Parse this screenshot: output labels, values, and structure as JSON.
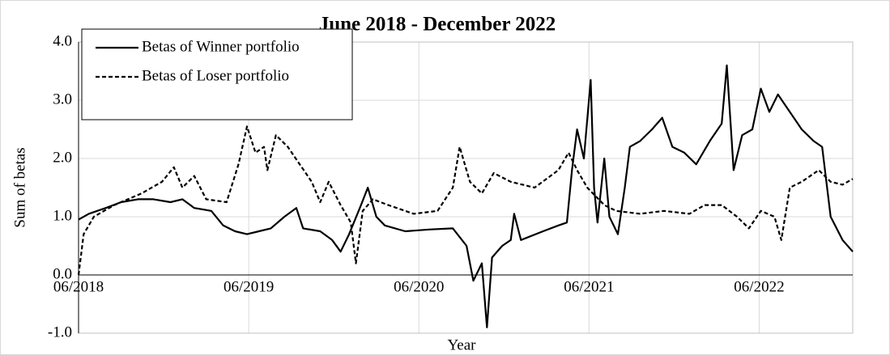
{
  "chart_data": {
    "type": "line",
    "title": "June 2018 - December 2022",
    "x_label": "Year",
    "y_label": "Sum of betas",
    "xlim": [
      2018.42,
      2022.97
    ],
    "xticks": [
      {
        "value": 2018.42,
        "label": "06/2018"
      },
      {
        "value": 2019.42,
        "label": "06/2019"
      },
      {
        "value": 2020.42,
        "label": "06/2020"
      },
      {
        "value": 2021.42,
        "label": "06/2021"
      },
      {
        "value": 2022.42,
        "label": "06/2022"
      }
    ],
    "ylim": [
      -1,
      4
    ],
    "yticks": [
      {
        "value": -1,
        "label": "-1.0"
      },
      {
        "value": 0,
        "label": "0.0"
      },
      {
        "value": 1,
        "label": "1.0"
      },
      {
        "value": 2,
        "label": "2.0"
      },
      {
        "value": 3,
        "label": "3.0"
      },
      {
        "value": 4,
        "label": "4.0"
      }
    ],
    "grid": true,
    "legend": "upper left",
    "series": [
      {
        "name": "Betas of Winner portfolio",
        "color": "#000000",
        "dashed": false,
        "x": [
          2018.42,
          2018.48,
          2018.58,
          2018.67,
          2018.77,
          2018.86,
          2018.96,
          2019.03,
          2019.1,
          2019.2,
          2019.27,
          2019.34,
          2019.41,
          2019.48,
          2019.55,
          2019.63,
          2019.7,
          2019.74,
          2019.84,
          2019.91,
          2019.96,
          2020.01,
          2020.08,
          2020.12,
          2020.17,
          2020.22,
          2020.34,
          2020.48,
          2020.62,
          2020.7,
          2020.74,
          2020.79,
          2020.82,
          2020.85,
          2020.91,
          2020.96,
          2020.98,
          2021.02,
          2021.15,
          2021.24,
          2021.29,
          2021.32,
          2021.35,
          2021.39,
          2021.43,
          2021.45,
          2021.47,
          2021.51,
          2021.54,
          2021.59,
          2021.63,
          2021.66,
          2021.72,
          2021.79,
          2021.85,
          2021.91,
          2021.98,
          2022.05,
          2022.13,
          2022.2,
          2022.23,
          2022.27,
          2022.32,
          2022.38,
          2022.43,
          2022.48,
          2022.53,
          2022.6,
          2022.67,
          2022.74,
          2022.79,
          2022.84,
          2022.91,
          2022.97
        ],
        "values": [
          0.95,
          1.05,
          1.15,
          1.25,
          1.3,
          1.3,
          1.25,
          1.3,
          1.15,
          1.1,
          0.85,
          0.75,
          0.7,
          0.75,
          0.8,
          1.0,
          1.15,
          0.8,
          0.75,
          0.6,
          0.4,
          0.7,
          1.2,
          1.5,
          1.0,
          0.85,
          0.75,
          0.78,
          0.8,
          0.5,
          -0.1,
          0.2,
          -0.9,
          0.3,
          0.5,
          0.6,
          1.05,
          0.6,
          0.75,
          0.85,
          0.9,
          1.8,
          2.5,
          2.0,
          3.35,
          1.5,
          0.9,
          2.0,
          1.0,
          0.7,
          1.5,
          2.2,
          2.3,
          2.5,
          2.7,
          2.2,
          2.1,
          1.9,
          2.3,
          2.6,
          3.6,
          1.8,
          2.4,
          2.5,
          3.2,
          2.8,
          3.1,
          2.8,
          2.5,
          2.3,
          2.2,
          1.0,
          0.6,
          0.4
        ]
      },
      {
        "name": "Betas of Loser portfolio",
        "color": "#000000",
        "dashed": true,
        "x": [
          2018.42,
          2018.45,
          2018.51,
          2018.63,
          2018.79,
          2018.91,
          2018.98,
          2019.03,
          2019.1,
          2019.17,
          2019.29,
          2019.36,
          2019.41,
          2019.46,
          2019.51,
          2019.53,
          2019.58,
          2019.65,
          2019.72,
          2019.79,
          2019.84,
          2019.89,
          2019.96,
          2020.02,
          2020.05,
          2020.09,
          2020.15,
          2020.24,
          2020.39,
          2020.53,
          2020.62,
          2020.66,
          2020.72,
          2020.79,
          2020.86,
          2020.96,
          2021.1,
          2021.24,
          2021.3,
          2021.35,
          2021.41,
          2021.51,
          2021.58,
          2021.72,
          2021.86,
          2022.01,
          2022.1,
          2022.2,
          2022.29,
          2022.36,
          2022.43,
          2022.51,
          2022.55,
          2022.6,
          2022.67,
          2022.77,
          2022.84,
          2022.91,
          2022.97
        ],
        "values": [
          0.0,
          0.7,
          1.0,
          1.2,
          1.4,
          1.6,
          1.85,
          1.5,
          1.7,
          1.3,
          1.25,
          1.9,
          2.55,
          2.1,
          2.2,
          1.8,
          2.4,
          2.2,
          1.9,
          1.6,
          1.25,
          1.6,
          1.2,
          0.9,
          0.2,
          1.1,
          1.3,
          1.2,
          1.05,
          1.1,
          1.5,
          2.2,
          1.6,
          1.4,
          1.75,
          1.6,
          1.5,
          1.8,
          2.1,
          1.8,
          1.5,
          1.2,
          1.1,
          1.05,
          1.1,
          1.05,
          1.2,
          1.2,
          1.0,
          0.8,
          1.1,
          1.0,
          0.6,
          1.5,
          1.6,
          1.8,
          1.6,
          1.55,
          1.65
        ]
      }
    ]
  }
}
